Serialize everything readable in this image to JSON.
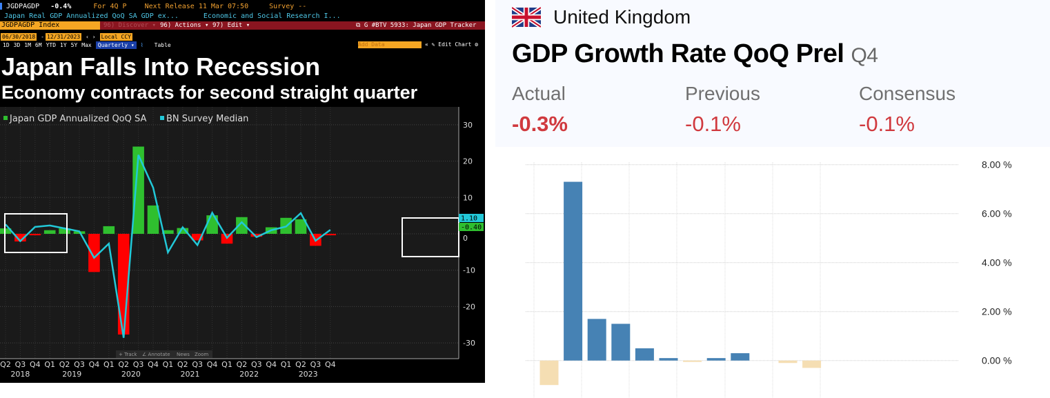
{
  "bloomberg": {
    "ticker": "JGDPAGDP",
    "last_value": "-0.4%",
    "period": "For 4Q P",
    "next_release": "Next Release 11 Mar 07:50",
    "survey": "Survey --",
    "description": "Japan Real GDP Annualized QoQ SA GDP ex...",
    "source": "Economic and Social Research I...",
    "security": "JGDPAGDP Index",
    "menu_discover": "96) Discover ▾",
    "menu_actions": "96) Actions ▾",
    "menu_edit": "97) Edit ▾",
    "tracker": "G #BTV 5933: Japan GDP Tracker",
    "start_date": "06/30/2018",
    "end_date": "12/31/2023",
    "currency": "Local CCY",
    "ranges": [
      "1D",
      "3D",
      "1M",
      "6M",
      "YTD",
      "1Y",
      "5Y",
      "Max"
    ],
    "frequency": "Quarterly ▾",
    "table": "Table",
    "add_data": "Add Data",
    "edit_chart": "Edit Chart",
    "title": "Japan Falls Into Recession",
    "subtitle": "Economy contracts for second straight quarter",
    "tools": [
      "+ Track",
      "∠ Annotate",
      "News",
      "Zoom"
    ]
  },
  "uk": {
    "country": "United Kingdom",
    "indicator": "GDP Growth Rate QoQ Prel",
    "period": "Q4",
    "stats": [
      {
        "label": "Actual",
        "value": "-0.3%"
      },
      {
        "label": "Previous",
        "value": "-0.1%"
      },
      {
        "label": "Consensus",
        "value": "-0.1%"
      }
    ]
  },
  "chart_data": [
    {
      "type": "bar",
      "categories": [
        "Q2",
        "Q3",
        "Q4",
        "Q1",
        "Q2",
        "Q3",
        "Q4",
        "Q1",
        "Q2",
        "Q3",
        "Q4",
        "Q1",
        "Q2",
        "Q3",
        "Q4",
        "Q1",
        "Q2",
        "Q3",
        "Q4",
        "Q1",
        "Q2",
        "Q3",
        "Q4"
      ],
      "year_labels": [
        "2018",
        "2019",
        "2020",
        "2021",
        "2022",
        "2023"
      ],
      "series": [
        {
          "name": "Japan GDP Annualized QoQ SA",
          "type": "bar",
          "color": "#2fbf2f",
          "negative_color": "#ff0000",
          "values": [
            1.5,
            -2.1,
            -0.4,
            1.0,
            1.5,
            0.7,
            -10.5,
            2.1,
            -27.7,
            24.0,
            7.8,
            1.0,
            1.6,
            -1.8,
            5.1,
            -2.7,
            4.6,
            -0.8,
            1.8,
            4.4,
            4.0,
            -3.3,
            -0.4
          ]
        },
        {
          "name": "BN Survey Median",
          "type": "line",
          "color": "#22c8d8",
          "values": [
            2.6,
            -2.0,
            1.9,
            2.3,
            1.5,
            0.7,
            -6.6,
            -2.7,
            -28.6,
            21.7,
            12.7,
            -5.1,
            1.8,
            -3.1,
            5.8,
            -1.1,
            3.2,
            -0.9,
            1.0,
            2.0,
            5.7,
            -1.9,
            1.1
          ]
        }
      ],
      "last_value_labels": [
        "1.10",
        "-0.40"
      ],
      "yticks": [
        30,
        20,
        10,
        0,
        -10,
        -20,
        -30
      ],
      "ylim": [
        -35,
        35
      ],
      "grid": true,
      "legend": "top-left"
    },
    {
      "type": "bar",
      "values": [
        -1.0,
        7.3,
        1.7,
        1.5,
        0.5,
        0.1,
        -0.05,
        0.1,
        0.3,
        0.0,
        -0.1,
        -0.3
      ],
      "positive_color": "#4682b4",
      "negative_color": "#f5deb3",
      "yticks": [
        "8.00 %",
        "6.00 %",
        "4.00 %",
        "2.00 %",
        "0.00 %"
      ],
      "ylim": [
        -1.5,
        8
      ],
      "grid": true
    }
  ]
}
